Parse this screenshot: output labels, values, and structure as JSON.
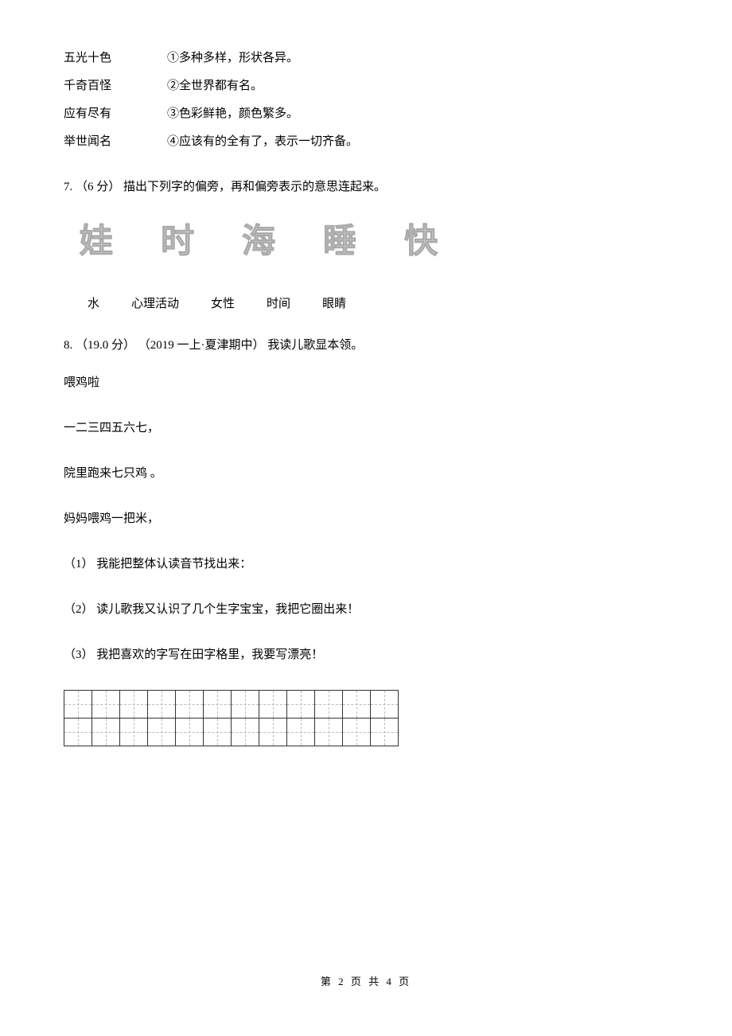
{
  "q6": {
    "matches": [
      {
        "left": "五光十色",
        "right": "①多种多样，形状各异。"
      },
      {
        "left": "千奇百怪",
        "right": "②全世界都有名。"
      },
      {
        "left": "应有尽有",
        "right": "③色彩鲜艳，颜色繁多。"
      },
      {
        "left": "举世闻名",
        "right": "④应该有的全有了，表示一切齐备。"
      }
    ]
  },
  "q7": {
    "number": "7.",
    "points": "（6 分）",
    "prompt": " 描出下列字的偏旁，再和偏旁表示的意思连起来。",
    "outline_chars": [
      "娃",
      "时",
      "海",
      "睡",
      "快"
    ],
    "meanings": [
      "水",
      "心理活动",
      "女性",
      "时间",
      "眼睛"
    ]
  },
  "q8": {
    "number": "8.",
    "points": "（19.0 分）",
    "source": "（2019 一上·夏津期中）",
    "prompt": "我读儿歌显本领。",
    "title": "喂鸡啦",
    "lines": [
      "一二三四五六七，",
      "院里跑来七只鸡 。",
      "妈妈喂鸡一把米，"
    ],
    "sub_questions": [
      {
        "num": "（1）",
        "text": " 我能把整体认读音节找出来："
      },
      {
        "num": "（2）",
        "text": " 读儿歌我又认识了几个生字宝宝，我把它圈出来！"
      },
      {
        "num": "（3）",
        "text": " 我把喜欢的字写在田字格里，我要写漂亮！"
      }
    ],
    "tianzige": {
      "rows": 2,
      "cols": 12,
      "border_color": "#333333",
      "dash_color": "#bbbbbb",
      "cell_size": 36
    }
  },
  "footer": {
    "text": "第 2 页 共 4 页"
  },
  "colors": {
    "background": "#ffffff",
    "text": "#000000",
    "outline_char": "#cccccc"
  },
  "typography": {
    "body_fontsize": 15,
    "outline_fontsize": 42,
    "footer_fontsize": 13
  }
}
